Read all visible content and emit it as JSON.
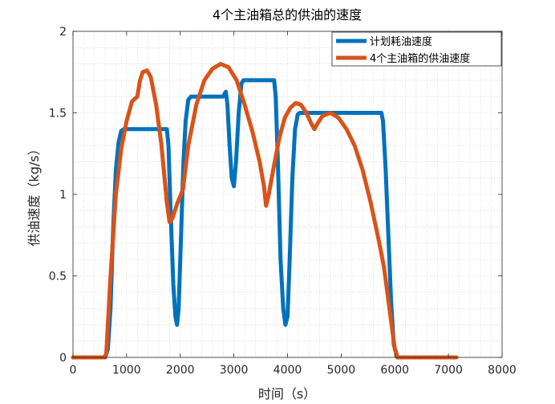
{
  "chart_data": {
    "type": "line",
    "title": "4个主油箱总的供油的速度",
    "xlabel": "时间（s）",
    "ylabel": "供油速度（kg/s）",
    "xlim": [
      0,
      8000
    ],
    "ylim": [
      0,
      2
    ],
    "xticks": [
      0,
      1000,
      2000,
      3000,
      4000,
      5000,
      6000,
      7000,
      8000
    ],
    "yticks": [
      0,
      0.5,
      1,
      1.5,
      2
    ],
    "ytick_labels": [
      "0",
      "0.5",
      "1",
      "1.5",
      "2"
    ],
    "grid": "minor-dotted",
    "legend_position": "top-right",
    "series": [
      {
        "name": "计划耗油速度",
        "color": "#0072BD",
        "points": [
          [
            0,
            0
          ],
          [
            600,
            0
          ],
          [
            650,
            0.05
          ],
          [
            700,
            0.3
          ],
          [
            750,
            0.8
          ],
          [
            800,
            1.15
          ],
          [
            850,
            1.32
          ],
          [
            900,
            1.39
          ],
          [
            950,
            1.4
          ],
          [
            1750,
            1.4
          ],
          [
            1780,
            1.3
          ],
          [
            1820,
            0.9
          ],
          [
            1870,
            0.45
          ],
          [
            1910,
            0.25
          ],
          [
            1940,
            0.2
          ],
          [
            1970,
            0.3
          ],
          [
            2010,
            0.7
          ],
          [
            2060,
            1.2
          ],
          [
            2100,
            1.45
          ],
          [
            2150,
            1.58
          ],
          [
            2200,
            1.6
          ],
          [
            2800,
            1.6
          ],
          [
            2850,
            1.63
          ],
          [
            2880,
            1.55
          ],
          [
            2920,
            1.3
          ],
          [
            2960,
            1.1
          ],
          [
            3000,
            1.05
          ],
          [
            3040,
            1.2
          ],
          [
            3090,
            1.5
          ],
          [
            3140,
            1.68
          ],
          [
            3180,
            1.7
          ],
          [
            3750,
            1.7
          ],
          [
            3780,
            1.6
          ],
          [
            3820,
            1.2
          ],
          [
            3870,
            0.6
          ],
          [
            3920,
            0.3
          ],
          [
            3960,
            0.2
          ],
          [
            4000,
            0.25
          ],
          [
            4040,
            0.6
          ],
          [
            4090,
            1.1
          ],
          [
            4140,
            1.4
          ],
          [
            4190,
            1.49
          ],
          [
            4230,
            1.5
          ],
          [
            5750,
            1.5
          ],
          [
            5780,
            1.45
          ],
          [
            5830,
            1.15
          ],
          [
            5880,
            0.75
          ],
          [
            5930,
            0.35
          ],
          [
            5980,
            0.08
          ],
          [
            6050,
            0
          ]
        ]
      },
      {
        "name": "4个主油箱的供油速度",
        "color": "#D95319",
        "points": [
          [
            0,
            0
          ],
          [
            580,
            0
          ],
          [
            620,
            0.02
          ],
          [
            700,
            0.5
          ],
          [
            800,
            1.0
          ],
          [
            900,
            1.28
          ],
          [
            1000,
            1.45
          ],
          [
            1100,
            1.57
          ],
          [
            1200,
            1.6
          ],
          [
            1250,
            1.7
          ],
          [
            1300,
            1.75
          ],
          [
            1380,
            1.76
          ],
          [
            1450,
            1.72
          ],
          [
            1550,
            1.55
          ],
          [
            1650,
            1.3
          ],
          [
            1750,
            0.95
          ],
          [
            1800,
            0.83
          ],
          [
            1850,
            0.85
          ],
          [
            1950,
            0.95
          ],
          [
            2050,
            1.03
          ],
          [
            2150,
            1.3
          ],
          [
            2300,
            1.55
          ],
          [
            2450,
            1.7
          ],
          [
            2600,
            1.77
          ],
          [
            2750,
            1.8
          ],
          [
            2900,
            1.78
          ],
          [
            3050,
            1.7
          ],
          [
            3200,
            1.55
          ],
          [
            3350,
            1.38
          ],
          [
            3480,
            1.2
          ],
          [
            3560,
            1.05
          ],
          [
            3600,
            0.93
          ],
          [
            3650,
            1.0
          ],
          [
            3750,
            1.18
          ],
          [
            3850,
            1.35
          ],
          [
            3950,
            1.47
          ],
          [
            4050,
            1.53
          ],
          [
            4150,
            1.56
          ],
          [
            4250,
            1.55
          ],
          [
            4350,
            1.5
          ],
          [
            4450,
            1.43
          ],
          [
            4500,
            1.4
          ],
          [
            4550,
            1.43
          ],
          [
            4650,
            1.48
          ],
          [
            4800,
            1.5
          ],
          [
            4950,
            1.47
          ],
          [
            5100,
            1.4
          ],
          [
            5250,
            1.3
          ],
          [
            5400,
            1.15
          ],
          [
            5550,
            0.95
          ],
          [
            5700,
            0.72
          ],
          [
            5800,
            0.55
          ],
          [
            5900,
            0.3
          ],
          [
            6000,
            0.05
          ],
          [
            6050,
            0
          ],
          [
            7150,
            0
          ]
        ]
      }
    ]
  }
}
